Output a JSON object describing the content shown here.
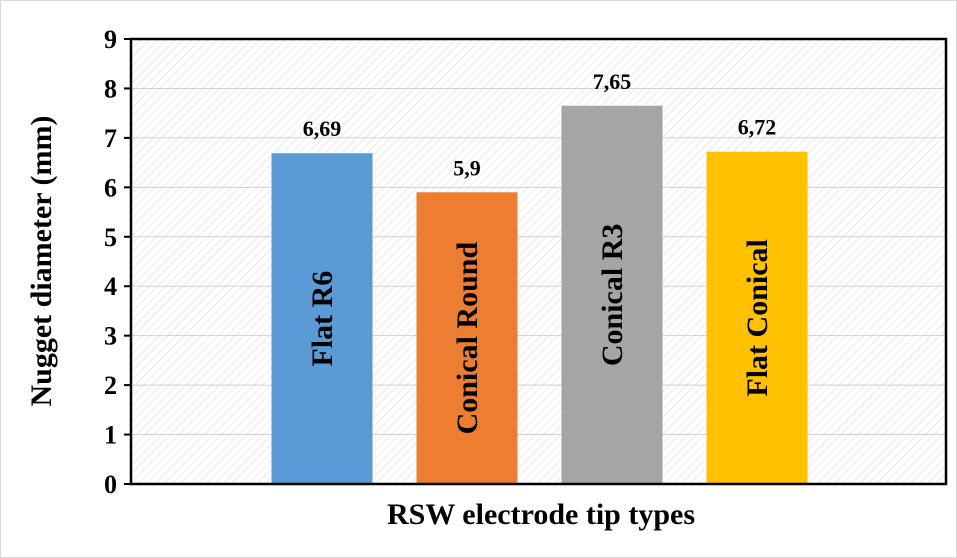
{
  "chart_data": {
    "type": "bar",
    "categories": [
      "Flat R6",
      "Conical Round",
      "Conical R3",
      "Flat Conical"
    ],
    "values": [
      6.69,
      5.9,
      7.65,
      6.72
    ],
    "value_labels": [
      "6,69",
      "5,9",
      "7,65",
      "6,72"
    ],
    "colors": [
      "#5b9bd5",
      "#ed7d31",
      "#a5a5a5",
      "#ffc000"
    ],
    "title": "",
    "xlabel": "RSW electrode tip types",
    "ylabel": "Nugget diameter (mm)",
    "ylim": [
      0,
      9
    ],
    "yticks": [
      "0",
      "1",
      "2",
      "3",
      "4",
      "5",
      "6",
      "7",
      "8",
      "9"
    ],
    "grid": true,
    "legend": "none"
  }
}
